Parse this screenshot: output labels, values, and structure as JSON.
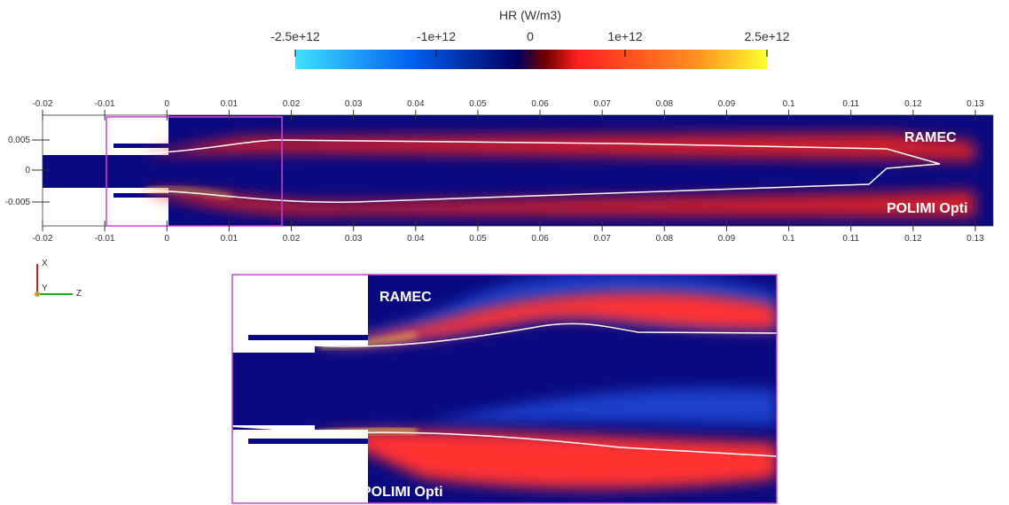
{
  "colorbar": {
    "title": "HR (W/m3)",
    "ticks": [
      "-2.5e+12",
      "-1e+12",
      "0",
      "1e+12",
      "2.5e+12"
    ]
  },
  "main_view": {
    "z_ticks": [
      "-0.02",
      "-0.01",
      "0",
      "0.01",
      "0.02",
      "0.03",
      "0.04",
      "0.05",
      "0.06",
      "0.07",
      "0.08",
      "0.09",
      "0.1",
      "0.11",
      "0.12",
      "0.13"
    ],
    "x_ticks": [
      "0.005",
      "0",
      "-0.005"
    ],
    "labels": {
      "top": "RAMEC",
      "bottom": "POLIMI Opti"
    }
  },
  "axes_triad": {
    "x": "X",
    "y": "Y",
    "z": "Z"
  },
  "inset": {
    "labels": {
      "top": "RAMEC",
      "bottom": "POLIMI Opti"
    }
  }
}
